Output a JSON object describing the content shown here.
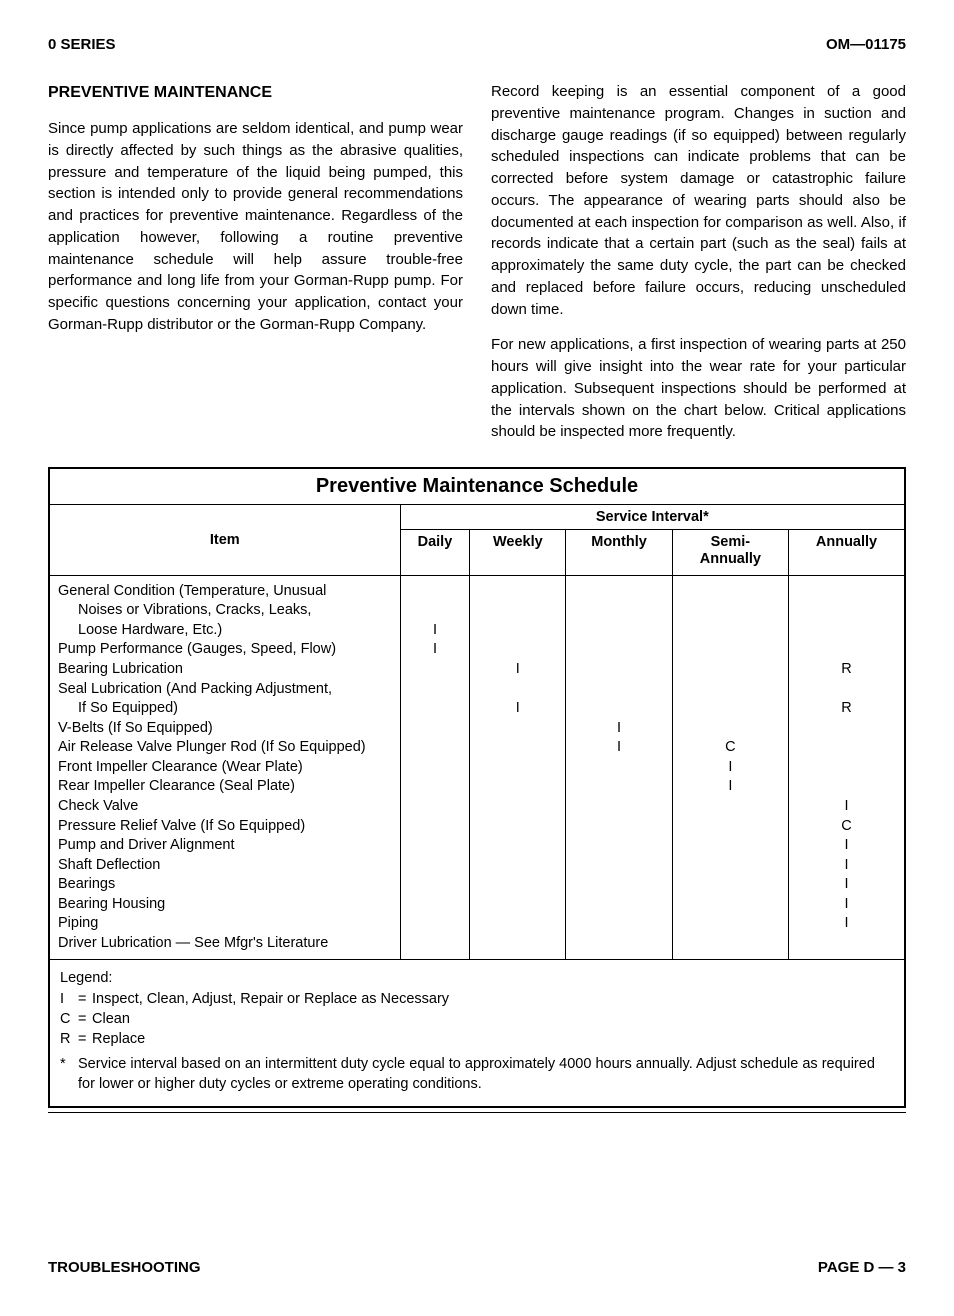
{
  "header": {
    "left": "0 SERIES",
    "right": "OM—01175"
  },
  "section_title": "PREVENTIVE MAINTENANCE",
  "paragraphs": [
    "Since pump applications are seldom identical, and pump wear is directly affected by such things as the abrasive qualities, pressure and temperature of the liquid being pumped, this section is intended only to provide general recommendations and practices for preventive maintenance. Regardless of the application however, following a routine preventive maintenance schedule will help assure trouble-free performance and long life from your Gorman-Rupp pump. For specific questions concerning your application, contact your Gorman-Rupp distributor or the Gorman-Rupp Company.",
    "Record keeping is an essential component of a good preventive maintenance program. Changes in suction and discharge gauge readings (if so equipped) between regularly scheduled inspections can indicate problems that can be corrected before system damage or catastrophic failure occurs. The appearance of wearing parts should also be documented at each inspection for comparison as well. Also, if records indicate that a certain part (such as the seal) fails at approximately the same duty cycle, the part can be checked and replaced before failure occurs, reducing unscheduled down time.",
    "For new applications, a first inspection of wearing parts at 250 hours will give insight into the wear rate for your particular application. Subsequent inspections should be performed at the intervals shown on the chart below. Critical applications should be inspected more frequently."
  ],
  "table": {
    "title": "Preventive Maintenance Schedule",
    "item_header": "Item",
    "service_header": "Service Interval*",
    "columns": [
      "Daily",
      "Weekly",
      "Monthly",
      "Semi-\nAnnually",
      "Annually"
    ],
    "rows": [
      {
        "item": "General Condition (Temperature, Unusual Noises or Vibrations, Cracks, Leaks, Loose Hardware, Etc.)",
        "wrap": 3,
        "vals": [
          "I",
          "",
          "",
          "",
          ""
        ]
      },
      {
        "item": "Pump Performance (Gauges, Speed, Flow)",
        "wrap": 1,
        "vals": [
          "I",
          "",
          "",
          "",
          ""
        ]
      },
      {
        "item": "Bearing Lubrication",
        "wrap": 1,
        "vals": [
          "",
          "I",
          "",
          "",
          "R"
        ]
      },
      {
        "item": "Seal Lubrication (And Packing Adjustment, If So Equipped)",
        "wrap": 2,
        "vals": [
          "",
          "I",
          "",
          "",
          "R"
        ]
      },
      {
        "item": "V-Belts (If So Equipped)",
        "wrap": 1,
        "vals": [
          "",
          "",
          "I",
          "",
          ""
        ]
      },
      {
        "item": "Air Release Valve Plunger Rod (If So Equipped)",
        "wrap": 1,
        "vals": [
          "",
          "",
          "I",
          "C",
          ""
        ]
      },
      {
        "item": "Front Impeller Clearance (Wear Plate)",
        "wrap": 1,
        "vals": [
          "",
          "",
          "",
          "I",
          ""
        ]
      },
      {
        "item": "Rear Impeller Clearance (Seal Plate)",
        "wrap": 1,
        "vals": [
          "",
          "",
          "",
          "I",
          ""
        ]
      },
      {
        "item": "Check Valve",
        "wrap": 1,
        "vals": [
          "",
          "",
          "",
          "",
          "I"
        ]
      },
      {
        "item": "Pressure Relief Valve (If So Equipped)",
        "wrap": 1,
        "vals": [
          "",
          "",
          "",
          "",
          "C"
        ]
      },
      {
        "item": "Pump and Driver Alignment",
        "wrap": 1,
        "vals": [
          "",
          "",
          "",
          "",
          "I"
        ]
      },
      {
        "item": "Shaft Deflection",
        "wrap": 1,
        "vals": [
          "",
          "",
          "",
          "",
          "I"
        ]
      },
      {
        "item": "Bearings",
        "wrap": 1,
        "vals": [
          "",
          "",
          "",
          "",
          "I"
        ]
      },
      {
        "item": "Bearing Housing",
        "wrap": 1,
        "vals": [
          "",
          "",
          "",
          "",
          "I"
        ]
      },
      {
        "item": "Piping",
        "wrap": 1,
        "vals": [
          "",
          "",
          "",
          "",
          "I"
        ]
      },
      {
        "item": "Driver Lubrication — See Mfgr's Literature",
        "wrap": 1,
        "vals": [
          "",
          "",
          "",
          "",
          ""
        ]
      }
    ]
  },
  "legend": {
    "title": "Legend:",
    "entries": [
      {
        "key": "I",
        "text": "Inspect, Clean, Adjust, Repair or Replace as Necessary"
      },
      {
        "key": "C",
        "text": "Clean"
      },
      {
        "key": "R",
        "text": "Replace"
      }
    ],
    "star": "Service interval based on an intermittent duty cycle equal to approximately 4000 hours annually. Adjust schedule as required for lower or higher duty cycles or extreme operating conditions."
  },
  "footer": {
    "left": "TROUBLESHOOTING",
    "right": "PAGE D — 3"
  },
  "colors": {
    "text": "#000000",
    "background": "#ffffff",
    "border": "#000000"
  },
  "typography": {
    "body_font": "Arial, Helvetica, sans-serif",
    "body_fontsize": 15,
    "title_fontsize": 20,
    "section_fontsize": 16
  }
}
